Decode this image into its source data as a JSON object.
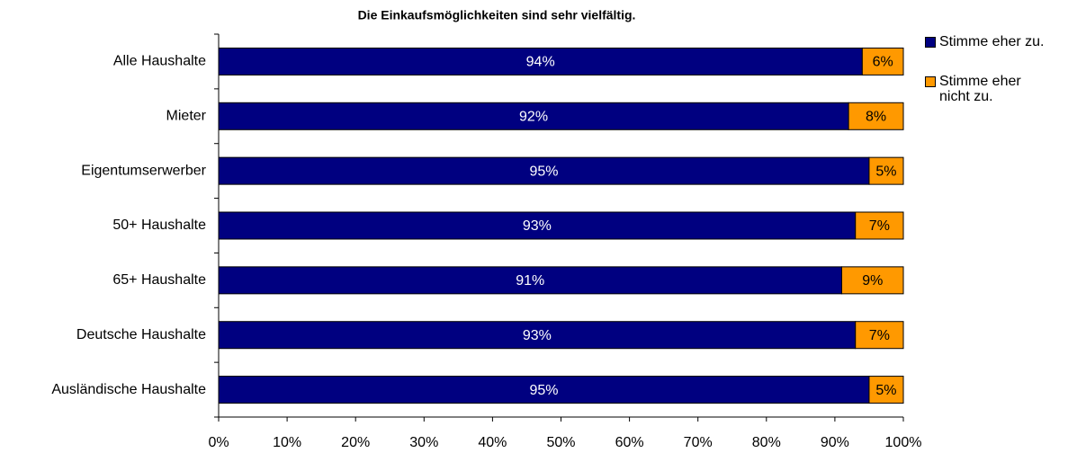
{
  "chart_data": {
    "type": "stacked-barh",
    "title": "Die Einkaufsmöglichkeiten sind sehr vielfältig.",
    "categories": [
      "Alle Haushalte",
      "Mieter",
      "Eigentumserwerber",
      "50+ Haushalte",
      "65+ Haushalte",
      "Deutsche Haushalte",
      "Ausländische Haushalte"
    ],
    "series": [
      {
        "name": "Stimme eher zu.",
        "color": "#000080",
        "values": [
          94,
          92,
          95,
          93,
          91,
          93,
          95
        ],
        "value_labels": [
          "94%",
          "92%",
          "95%",
          "93%",
          "91%",
          "93%",
          "95%"
        ]
      },
      {
        "name": "Stimme eher nicht zu.",
        "color": "#ff9900",
        "values": [
          6,
          8,
          5,
          7,
          9,
          7,
          5
        ],
        "value_labels": [
          "6%",
          "8%",
          "5%",
          "7%",
          "9%",
          "7%",
          "5%"
        ]
      }
    ],
    "xlim": [
      0,
      100
    ],
    "xticks": [
      {
        "value": 0,
        "label": "0%"
      },
      {
        "value": 10,
        "label": "10%"
      },
      {
        "value": 20,
        "label": "20%"
      },
      {
        "value": 30,
        "label": "30%"
      },
      {
        "value": 40,
        "label": "40%"
      },
      {
        "value": 50,
        "label": "50%"
      },
      {
        "value": 60,
        "label": "60%"
      },
      {
        "value": 70,
        "label": "70%"
      },
      {
        "value": 80,
        "label": "80%"
      },
      {
        "value": 90,
        "label": "90%"
      },
      {
        "value": 100,
        "label": "100%"
      }
    ],
    "legend": "right"
  }
}
